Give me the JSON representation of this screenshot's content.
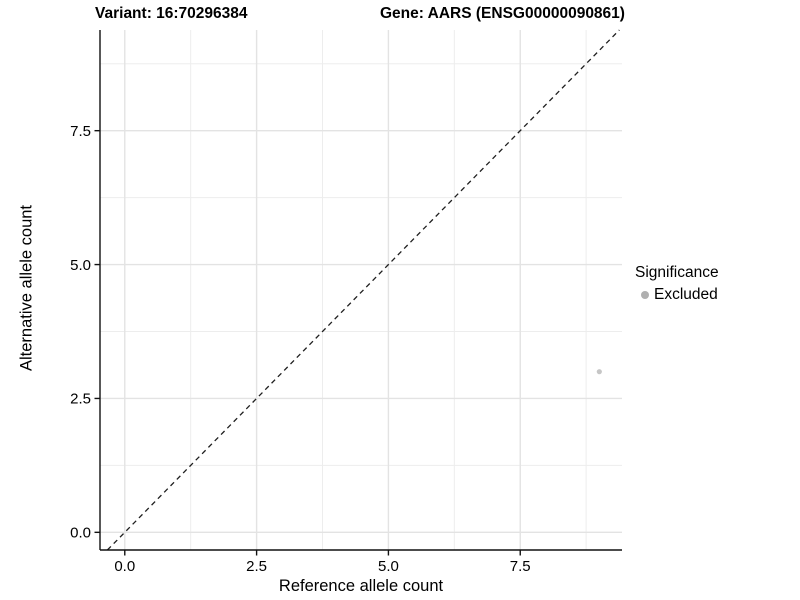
{
  "header": {
    "title_left": "Variant: 16:70296384",
    "title_right": "Gene: AARS (ENSG00000090861)"
  },
  "chart_data": {
    "type": "scatter",
    "title_left": "Variant: 16:70296384",
    "title_right": "Gene: AARS (ENSG00000090861)",
    "xlabel": "Reference allele count",
    "ylabel": "Alternative allele count",
    "x_tick_values": [
      0,
      2.5,
      5,
      7.5
    ],
    "x_tick_labels": [
      "0.0",
      "2.5",
      "5.0",
      "7.5"
    ],
    "y_tick_values": [
      0,
      2.5,
      5,
      7.5
    ],
    "y_tick_labels": [
      "0.0",
      "2.5",
      "5.0",
      "7.5"
    ],
    "x_minor_ticks": [
      1.25,
      3.75,
      6.25,
      8.75
    ],
    "y_minor_ticks": [
      1.25,
      3.75,
      6.25,
      8.75
    ],
    "xlim": [
      -0.47,
      9.43
    ],
    "ylim": [
      -0.33,
      9.38
    ],
    "grid": true,
    "series": [
      {
        "name": "Excluded",
        "color": "#c6c6c6",
        "point_radius": 2.6,
        "points": [
          {
            "x": 9,
            "y": 3
          }
        ]
      }
    ],
    "reference_line": {
      "kind": "identity",
      "slope": 1,
      "intercept": 0,
      "linetype": "dashed",
      "color": "#1f1f1f"
    },
    "legend": {
      "position": "right",
      "title": "Significance",
      "entries": [
        {
          "label": "Excluded",
          "swatch_color": "#b0b0b0"
        }
      ]
    },
    "colors": {
      "background": "#ffffff",
      "grid_major": "#e3e3e3",
      "grid_minor": "#ededed",
      "axis_line": "#111111",
      "tick_mark": "#111111",
      "tick_text": "#000000"
    }
  }
}
